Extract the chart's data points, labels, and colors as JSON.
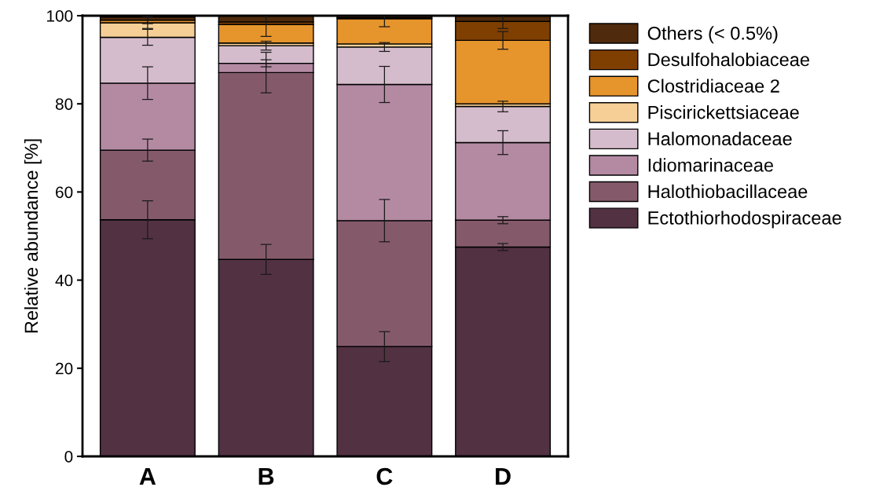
{
  "chart_data": {
    "type": "bar",
    "stacked": true,
    "ylabel": "Relative abundance [%]",
    "categories": [
      "A",
      "B",
      "C",
      "D"
    ],
    "series": [
      {
        "name": "Ectothiorhodospiraceae",
        "color": "#523143",
        "values": [
          53.7,
          44.7,
          24.9,
          47.5
        ],
        "errors": [
          4.3,
          3.4,
          3.4,
          0.8
        ]
      },
      {
        "name": "Halothiobacillaceae",
        "color": "#845a6b",
        "values": [
          15.8,
          42.4,
          28.6,
          6.1
        ],
        "errors": [
          2.5,
          4.6,
          4.8,
          0.8
        ]
      },
      {
        "name": "Idiomarinaceae",
        "color": "#b48aa3",
        "values": [
          15.2,
          2.1,
          30.9,
          17.6
        ],
        "errors": [
          3.7,
          0.8,
          4.1,
          2.7
        ]
      },
      {
        "name": "Halomonadaceae",
        "color": "#d5bccc",
        "values": [
          10.4,
          4.0,
          8.5,
          8.2
        ],
        "errors": [
          1.8,
          1.0,
          1.0,
          1.2
        ]
      },
      {
        "name": "Piscirickettsiaceae",
        "color": "#f6cf96",
        "values": [
          3.3,
          0.6,
          0.7,
          0.6
        ],
        "errors": [
          1.3,
          null,
          null,
          null
        ]
      },
      {
        "name": "Clostridiaceae 2",
        "color": "#e6942c",
        "values": [
          0.6,
          4.2,
          5.7,
          14.4
        ],
        "errors": [
          null,
          2.7,
          1.8,
          2.0
        ]
      },
      {
        "name": "Desulfohalobiaceae",
        "color": "#7f3f00",
        "values": [
          null,
          0.6,
          0.2,
          4.3
        ],
        "errors": [
          null,
          null,
          null,
          1.6
        ]
      },
      {
        "name": "Others (< 0.5%)",
        "color": "#4f2a0c",
        "values": [
          0.7,
          1.4,
          0.5,
          1.3
        ],
        "errors": [
          1.5,
          null,
          null,
          null
        ]
      }
    ],
    "ylim": [
      0,
      100
    ],
    "yticks": [
      0,
      20,
      40,
      60,
      80,
      100
    ],
    "legend": "right"
  }
}
